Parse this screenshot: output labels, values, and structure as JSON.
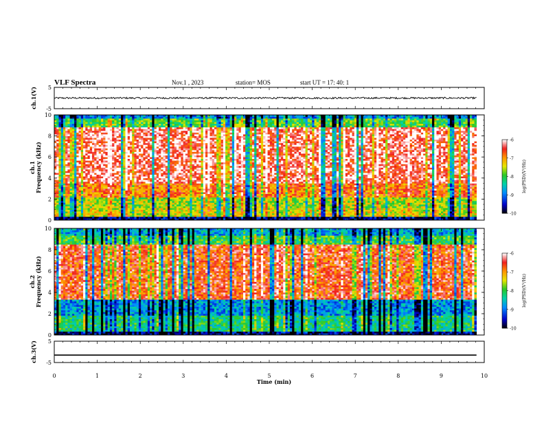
{
  "header": {
    "title": "VLF Spectra",
    "date": "Nov.1 , 2023",
    "station": "station= MOS",
    "start_ut": "start UT = 17: 40: 1"
  },
  "chart_data": [
    {
      "type": "line",
      "panel": "ch1-waveform",
      "ylabel": "ch.1(V)",
      "ylim": [
        -5,
        5
      ],
      "yticks": [
        "5",
        "-5"
      ],
      "xlim": [
        0,
        10
      ],
      "x_end": 9.82,
      "description_values": {
        "baseline_v": 0.0,
        "noise_amplitude_v": 0.4
      }
    },
    {
      "type": "heatmap",
      "panel": "ch1-spectrogram",
      "ylabel": "ch.1\nFrequency (kHz)",
      "ylabel_line1": "ch.1",
      "ylabel_line2": "Frequency (kHz)",
      "ylim": [
        0,
        10
      ],
      "yticks": [
        "0",
        "2",
        "4",
        "6",
        "8",
        "10"
      ],
      "xlim": [
        0,
        10
      ],
      "x_end": 9.82,
      "colorbar": {
        "label": "log(PSD)(V²/Hz)",
        "range": [
          -10,
          -6
        ],
        "ticks": [
          "-6",
          "-7",
          "-8",
          "-9",
          "-10"
        ]
      },
      "bands_khz": [
        {
          "from": 0.0,
          "to": 0.3,
          "log_psd": -9.6
        },
        {
          "from": 0.3,
          "to": 1.2,
          "log_psd": -7.4
        },
        {
          "from": 1.2,
          "to": 2.2,
          "log_psd": -7.6
        },
        {
          "from": 2.2,
          "to": 3.5,
          "log_psd": -6.8
        },
        {
          "from": 3.5,
          "to": 8.8,
          "log_psd": -6.3
        },
        {
          "from": 8.8,
          "to": 9.6,
          "log_psd": -7.9
        },
        {
          "from": 9.6,
          "to": 10.0,
          "log_psd": -8.8
        }
      ]
    },
    {
      "type": "heatmap",
      "panel": "ch2-spectrogram",
      "ylabel": "ch.2\nFrequency (kHz)",
      "ylabel_line1": "ch.2",
      "ylabel_line2": "Frequency (kHz)",
      "ylim": [
        0,
        10
      ],
      "yticks": [
        "0",
        "2",
        "4",
        "6",
        "8",
        "10"
      ],
      "xlim": [
        0,
        10
      ],
      "x_end": 9.82,
      "colorbar": {
        "label": "log(PSD)(V²/Hz)",
        "range": [
          -10,
          -6
        ],
        "ticks": [
          "-6",
          "-7",
          "-8",
          "-9",
          "-10"
        ]
      },
      "bands_khz": [
        {
          "from": 0.0,
          "to": 0.3,
          "log_psd": -9.6
        },
        {
          "from": 0.3,
          "to": 1.8,
          "log_psd": -8.2
        },
        {
          "from": 1.8,
          "to": 3.4,
          "log_psd": -8.8
        },
        {
          "from": 3.4,
          "to": 8.5,
          "log_psd": -6.6
        },
        {
          "from": 8.5,
          "to": 9.3,
          "log_psd": -8.0
        },
        {
          "from": 9.3,
          "to": 10.0,
          "log_psd": -8.7
        }
      ]
    },
    {
      "type": "line",
      "panel": "ch3-waveform",
      "ylabel": "ch.3(V)",
      "ylim": [
        -5,
        5
      ],
      "yticks": [
        "5",
        "-5"
      ],
      "xlim": [
        0,
        10
      ],
      "x_end": 9.82,
      "description_values": {
        "constant_v": -1.5
      }
    }
  ],
  "xaxis": {
    "label": "Time (min)",
    "ticks": [
      "0",
      "1",
      "2",
      "3",
      "4",
      "5",
      "6",
      "7",
      "8",
      "9",
      "10"
    ],
    "range": [
      0,
      10
    ]
  }
}
